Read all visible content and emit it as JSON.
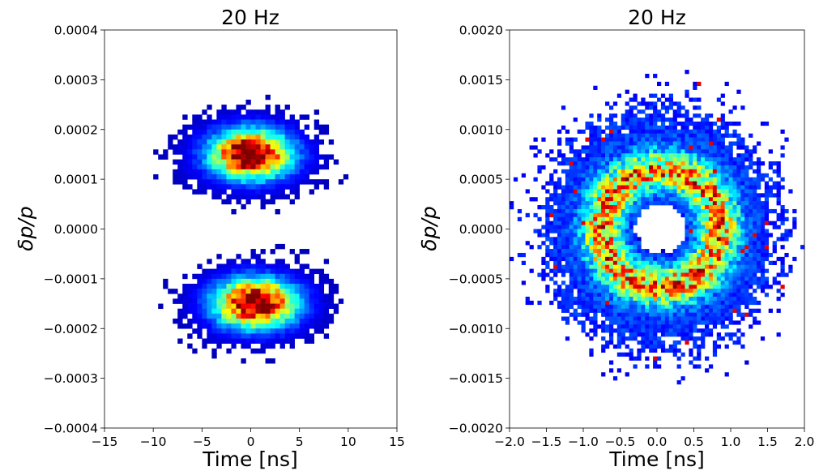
{
  "chart_data": [
    {
      "type": "heatmap",
      "title": "20 Hz",
      "xlabel": "Time [ns]",
      "ylabel": "δp/p",
      "xlim": [
        -15,
        15
      ],
      "ylim": [
        -0.0004,
        0.0004
      ],
      "xticks": [
        -15,
        -10,
        -5,
        0,
        5,
        10,
        15
      ],
      "xtick_labels": [
        "−15",
        "−10",
        "−5",
        "0",
        "5",
        "10",
        "15"
      ],
      "yticks": [
        0.0004,
        0.0003,
        0.0002,
        0.0001,
        0.0,
        -0.0001,
        -0.0002,
        -0.0003,
        -0.0004
      ],
      "ytick_labels": [
        "0.0004",
        "0.0003",
        "0.0002",
        "0.0001",
        "0.0000",
        "−0.0001",
        "−0.0002",
        "−0.0003",
        "−0.0004"
      ],
      "grid": false,
      "colormap": "jet (zero bins blank)",
      "components": [
        {
          "shape": "blob",
          "center_x": 0.0,
          "center_y": 0.00015,
          "core_radius_x": 2.5,
          "core_radius_y": 3e-05,
          "extent_x": [
            -9.5,
            9.5
          ],
          "extent_y": [
            3e-05,
            0.00025
          ]
        },
        {
          "shape": "blob",
          "center_x": 0.5,
          "center_y": -0.00015,
          "core_radius_x": 2.5,
          "core_radius_y": 3e-05,
          "extent_x": [
            -9.5,
            9.5
          ],
          "extent_y": [
            -0.00025,
            -3e-05
          ]
        }
      ]
    },
    {
      "type": "heatmap",
      "title": "20 Hz",
      "xlabel": "Time [ns]",
      "ylabel": "δp/p",
      "xlim": [
        -2.0,
        2.0
      ],
      "ylim": [
        -0.002,
        0.002
      ],
      "xticks": [
        -2.0,
        -1.5,
        -1.0,
        -0.5,
        0.0,
        0.5,
        1.0,
        1.5,
        2.0
      ],
      "xtick_labels": [
        "−2.0",
        "−1.5",
        "−1.0",
        "−0.5",
        "0.0",
        "0.5",
        "1.0",
        "1.5",
        "2.0"
      ],
      "yticks": [
        0.002,
        0.0015,
        0.001,
        0.0005,
        0.0,
        -0.0005,
        -0.001,
        -0.0015,
        -0.002
      ],
      "ytick_labels": [
        "0.0020",
        "0.0015",
        "0.0010",
        "0.0005",
        "0.0000",
        "−0.0005",
        "−0.0010",
        "−0.0015",
        "−0.0020"
      ],
      "grid": false,
      "colormap": "jet (zero bins blank)",
      "components": [
        {
          "shape": "ring",
          "center_x": 0.05,
          "center_y": 0.0,
          "ring_radius_x": 0.8,
          "ring_radius_y": 0.00058,
          "extent_x": [
            -1.9,
            1.9
          ],
          "extent_y": [
            -0.00138,
            0.0015
          ],
          "empty_core_radius_x": 0.35,
          "empty_core_radius_y": 0.00025
        }
      ]
    }
  ]
}
